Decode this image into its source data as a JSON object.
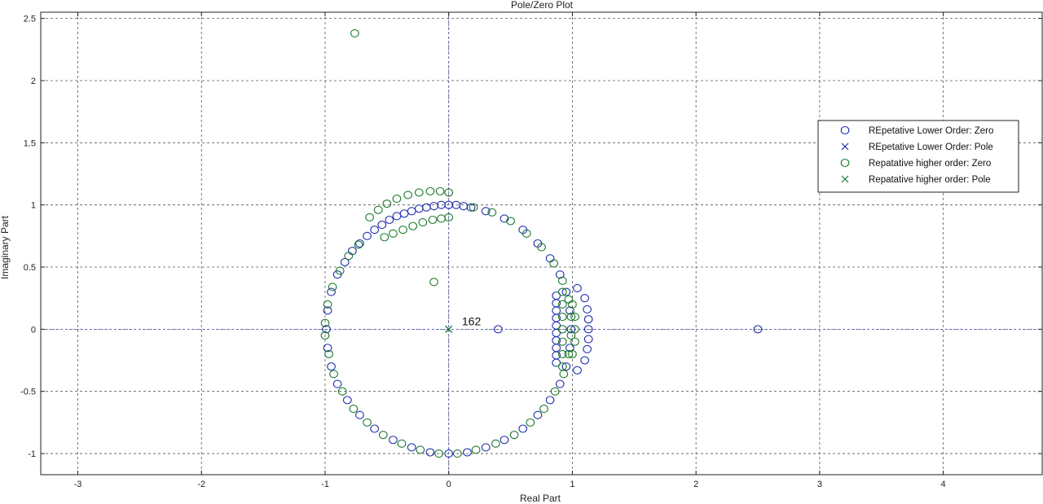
{
  "chart_data": {
    "type": "scatter",
    "title": "Pole/Zero Plot",
    "xlabel": "Real Part",
    "ylabel": "Imaginary Part",
    "xlim": [
      -3.3,
      4.8
    ],
    "ylim": [
      -1.17,
      2.55
    ],
    "xticks": [
      -3,
      -2,
      -1,
      0,
      1,
      2,
      3,
      4
    ],
    "yticks": [
      -1,
      -0.5,
      0,
      0.5,
      1,
      1.5,
      2,
      2.5
    ],
    "grid": true,
    "legend_position": "right",
    "colors": {
      "lower": "#1f2fb0",
      "higher": "#1d7a2c"
    },
    "annotations": [
      {
        "text": "162",
        "x": 0.1,
        "y": 0.02
      }
    ],
    "series": [
      {
        "name": "REpetative Lower Order: Zero",
        "marker": "o",
        "color": "#1f2fb0",
        "points": [
          [
            0.4,
            0
          ],
          [
            2.5,
            0
          ],
          [
            0.87,
            0.27
          ],
          [
            0.87,
            0.21
          ],
          [
            0.87,
            0.15
          ],
          [
            0.87,
            0.09
          ],
          [
            0.87,
            0.03
          ],
          [
            0.87,
            -0.03
          ],
          [
            0.87,
            -0.09
          ],
          [
            0.87,
            -0.15
          ],
          [
            0.87,
            -0.21
          ],
          [
            0.87,
            -0.27
          ],
          [
            1.04,
            0.33
          ],
          [
            1.1,
            0.25
          ],
          [
            1.12,
            0.16
          ],
          [
            1.13,
            0.08
          ],
          [
            1.13,
            0.0
          ],
          [
            1.13,
            -0.08
          ],
          [
            1.12,
            -0.16
          ],
          [
            1.1,
            -0.25
          ],
          [
            1.04,
            -0.33
          ],
          [
            -0.78,
            0.63
          ],
          [
            -0.72,
            0.69
          ],
          [
            -0.66,
            0.75
          ],
          [
            -0.6,
            0.8
          ],
          [
            -0.54,
            0.84
          ],
          [
            -0.48,
            0.88
          ],
          [
            -0.42,
            0.91
          ],
          [
            -0.36,
            0.93
          ],
          [
            -0.3,
            0.95
          ],
          [
            -0.24,
            0.97
          ],
          [
            -0.18,
            0.98
          ],
          [
            -0.12,
            0.99
          ],
          [
            -0.06,
            1.0
          ],
          [
            0.0,
            1.0
          ],
          [
            0.06,
            1.0
          ],
          [
            0.12,
            0.99
          ],
          [
            0.18,
            0.98
          ],
          [
            0.3,
            0.95
          ],
          [
            0.45,
            0.89
          ],
          [
            0.6,
            0.8
          ],
          [
            0.72,
            0.69
          ],
          [
            0.82,
            0.57
          ],
          [
            0.9,
            0.44
          ],
          [
            0.95,
            0.3
          ],
          [
            0.98,
            0.15
          ],
          [
            0.99,
            0.0
          ],
          [
            0.98,
            -0.15
          ],
          [
            0.95,
            -0.3
          ],
          [
            0.9,
            -0.44
          ],
          [
            0.82,
            -0.57
          ],
          [
            0.72,
            -0.69
          ],
          [
            0.6,
            -0.8
          ],
          [
            0.45,
            -0.89
          ],
          [
            0.3,
            -0.95
          ],
          [
            0.15,
            -0.99
          ],
          [
            0.0,
            -1.0
          ],
          [
            -0.15,
            -0.99
          ],
          [
            -0.3,
            -0.95
          ],
          [
            -0.45,
            -0.89
          ],
          [
            -0.6,
            -0.8
          ],
          [
            -0.72,
            -0.69
          ],
          [
            -0.82,
            -0.57
          ],
          [
            -0.9,
            -0.44
          ],
          [
            -0.95,
            -0.3
          ],
          [
            -0.98,
            -0.15
          ],
          [
            -0.99,
            0.0
          ],
          [
            -0.98,
            0.15
          ],
          [
            -0.95,
            0.3
          ],
          [
            -0.9,
            0.44
          ],
          [
            -0.84,
            0.54
          ]
        ]
      },
      {
        "name": "REpetative Lower Order: Pole",
        "marker": "x",
        "color": "#1f2fb0",
        "points": [
          [
            0,
            0
          ]
        ]
      },
      {
        "name": "Repatative higher order: Zero",
        "marker": "o",
        "color": "#1d7a2c",
        "points": [
          [
            -0.76,
            2.38
          ],
          [
            -0.12,
            0.38
          ],
          [
            -0.64,
            0.9
          ],
          [
            -0.57,
            0.96
          ],
          [
            -0.5,
            1.01
          ],
          [
            -0.42,
            1.05
          ],
          [
            -0.33,
            1.08
          ],
          [
            -0.24,
            1.1
          ],
          [
            -0.15,
            1.11
          ],
          [
            -0.07,
            1.11
          ],
          [
            0.0,
            1.1
          ],
          [
            -0.52,
            0.74
          ],
          [
            -0.45,
            0.77
          ],
          [
            -0.37,
            0.8
          ],
          [
            -0.29,
            0.83
          ],
          [
            -0.21,
            0.86
          ],
          [
            -0.13,
            0.88
          ],
          [
            -0.06,
            0.89
          ],
          [
            0.0,
            0.9
          ],
          [
            0.2,
            0.98
          ],
          [
            0.35,
            0.94
          ],
          [
            0.5,
            0.87
          ],
          [
            0.63,
            0.77
          ],
          [
            0.75,
            0.66
          ],
          [
            0.85,
            0.53
          ],
          [
            0.92,
            0.39
          ],
          [
            0.97,
            0.24
          ],
          [
            0.99,
            0.1
          ],
          [
            0.99,
            -0.05
          ],
          [
            0.97,
            -0.2
          ],
          [
            0.93,
            -0.36
          ],
          [
            0.86,
            -0.5
          ],
          [
            0.77,
            -0.64
          ],
          [
            0.66,
            -0.75
          ],
          [
            0.53,
            -0.85
          ],
          [
            0.38,
            -0.92
          ],
          [
            0.22,
            -0.97
          ],
          [
            0.07,
            -1.0
          ],
          [
            -0.08,
            -1.0
          ],
          [
            -0.23,
            -0.97
          ],
          [
            -0.38,
            -0.92
          ],
          [
            -0.53,
            -0.85
          ],
          [
            -0.66,
            -0.75
          ],
          [
            -0.77,
            -0.64
          ],
          [
            -0.86,
            -0.5
          ],
          [
            -0.93,
            -0.36
          ],
          [
            -0.97,
            -0.2
          ],
          [
            -1.0,
            -0.05
          ],
          [
            -1.0,
            0.05
          ],
          [
            -0.98,
            0.2
          ],
          [
            -0.94,
            0.34
          ],
          [
            -0.88,
            0.47
          ],
          [
            -0.81,
            0.59
          ],
          [
            -0.73,
            0.68
          ],
          [
            0.92,
            0.3
          ],
          [
            0.92,
            0.2
          ],
          [
            0.92,
            0.1
          ],
          [
            0.92,
            0.0
          ],
          [
            0.92,
            -0.1
          ],
          [
            0.92,
            -0.2
          ],
          [
            0.92,
            -0.3
          ],
          [
            1.0,
            0.2
          ],
          [
            1.02,
            0.1
          ],
          [
            1.02,
            0.0
          ],
          [
            1.02,
            -0.1
          ],
          [
            1.0,
            -0.2
          ]
        ]
      },
      {
        "name": "Repatative higher order: Pole",
        "marker": "x",
        "color": "#1d7a2c",
        "points": [
          [
            0,
            0
          ]
        ]
      }
    ]
  }
}
